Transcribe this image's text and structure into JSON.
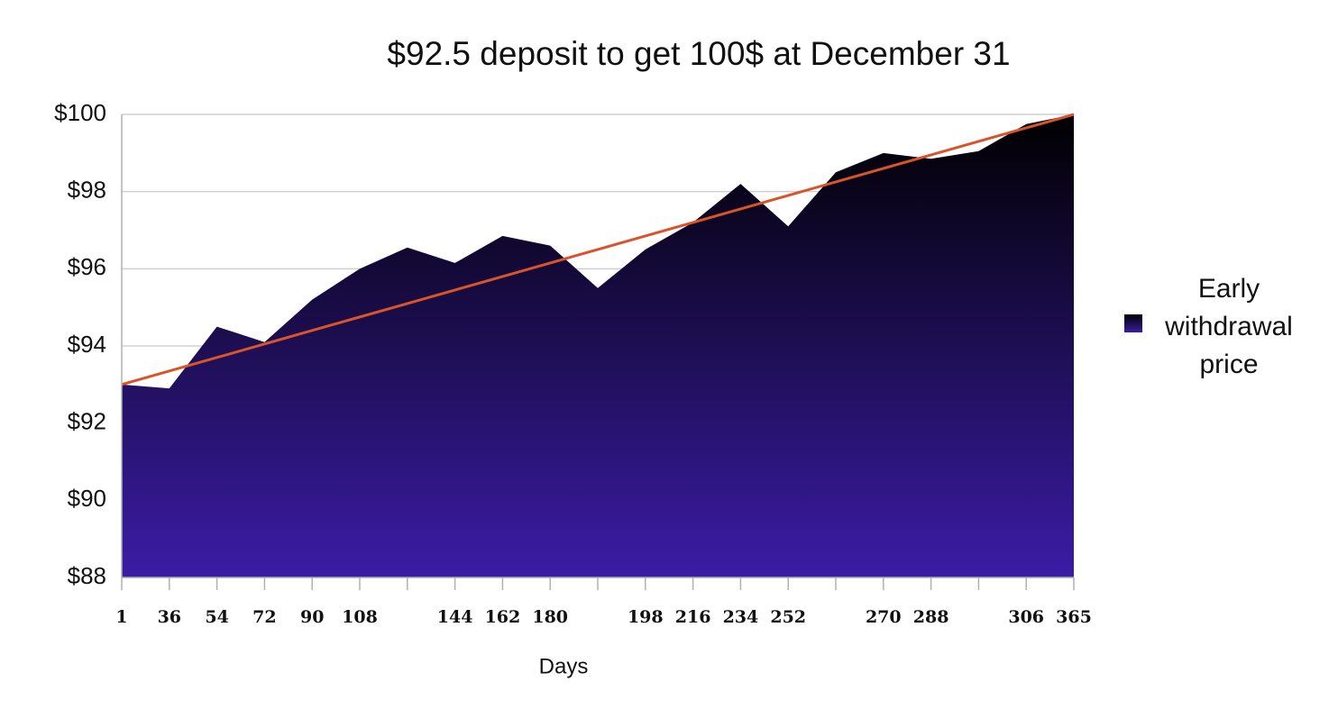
{
  "chart_data": {
    "type": "area",
    "title": "$92.5 deposit to get 100$ at December 31",
    "xlabel": "Days",
    "categories": [
      "1",
      "36",
      "54",
      "72",
      "90",
      "108",
      null,
      "144",
      "162",
      "180",
      null,
      "198",
      "216",
      "234",
      "252",
      null,
      "270",
      "288",
      null,
      "306",
      "365"
    ],
    "series": [
      {
        "name": "Early withdrawal price",
        "type": "area",
        "gradient": [
          "#000000",
          "#3b1ca6"
        ],
        "values": [
          93.0,
          92.9,
          94.5,
          94.1,
          95.2,
          96.0,
          96.55,
          96.15,
          96.85,
          96.6,
          95.5,
          96.5,
          97.2,
          98.2,
          97.1,
          98.5,
          99.0,
          98.85,
          99.05,
          99.75,
          100.0
        ]
      },
      {
        "type": "line",
        "color": "#d9532b",
        "values": [
          93.0,
          93.35,
          93.7,
          94.05,
          94.4,
          94.75,
          95.1,
          95.45,
          95.8,
          96.15,
          96.5,
          96.85,
          97.2,
          97.55,
          97.9,
          98.25,
          98.6,
          98.95,
          99.3,
          99.65,
          100.0
        ]
      }
    ],
    "ylim": [
      88,
      100
    ],
    "yticks": [
      {
        "value": 88,
        "label": "$88"
      },
      {
        "value": 90,
        "label": "$90"
      },
      {
        "value": 92,
        "label": "$92"
      },
      {
        "value": 94,
        "label": "$94"
      },
      {
        "value": 96,
        "label": "$96"
      },
      {
        "value": 98,
        "label": "$98"
      },
      {
        "value": 100,
        "label": "$100"
      }
    ],
    "grid": true,
    "legend": "right"
  }
}
